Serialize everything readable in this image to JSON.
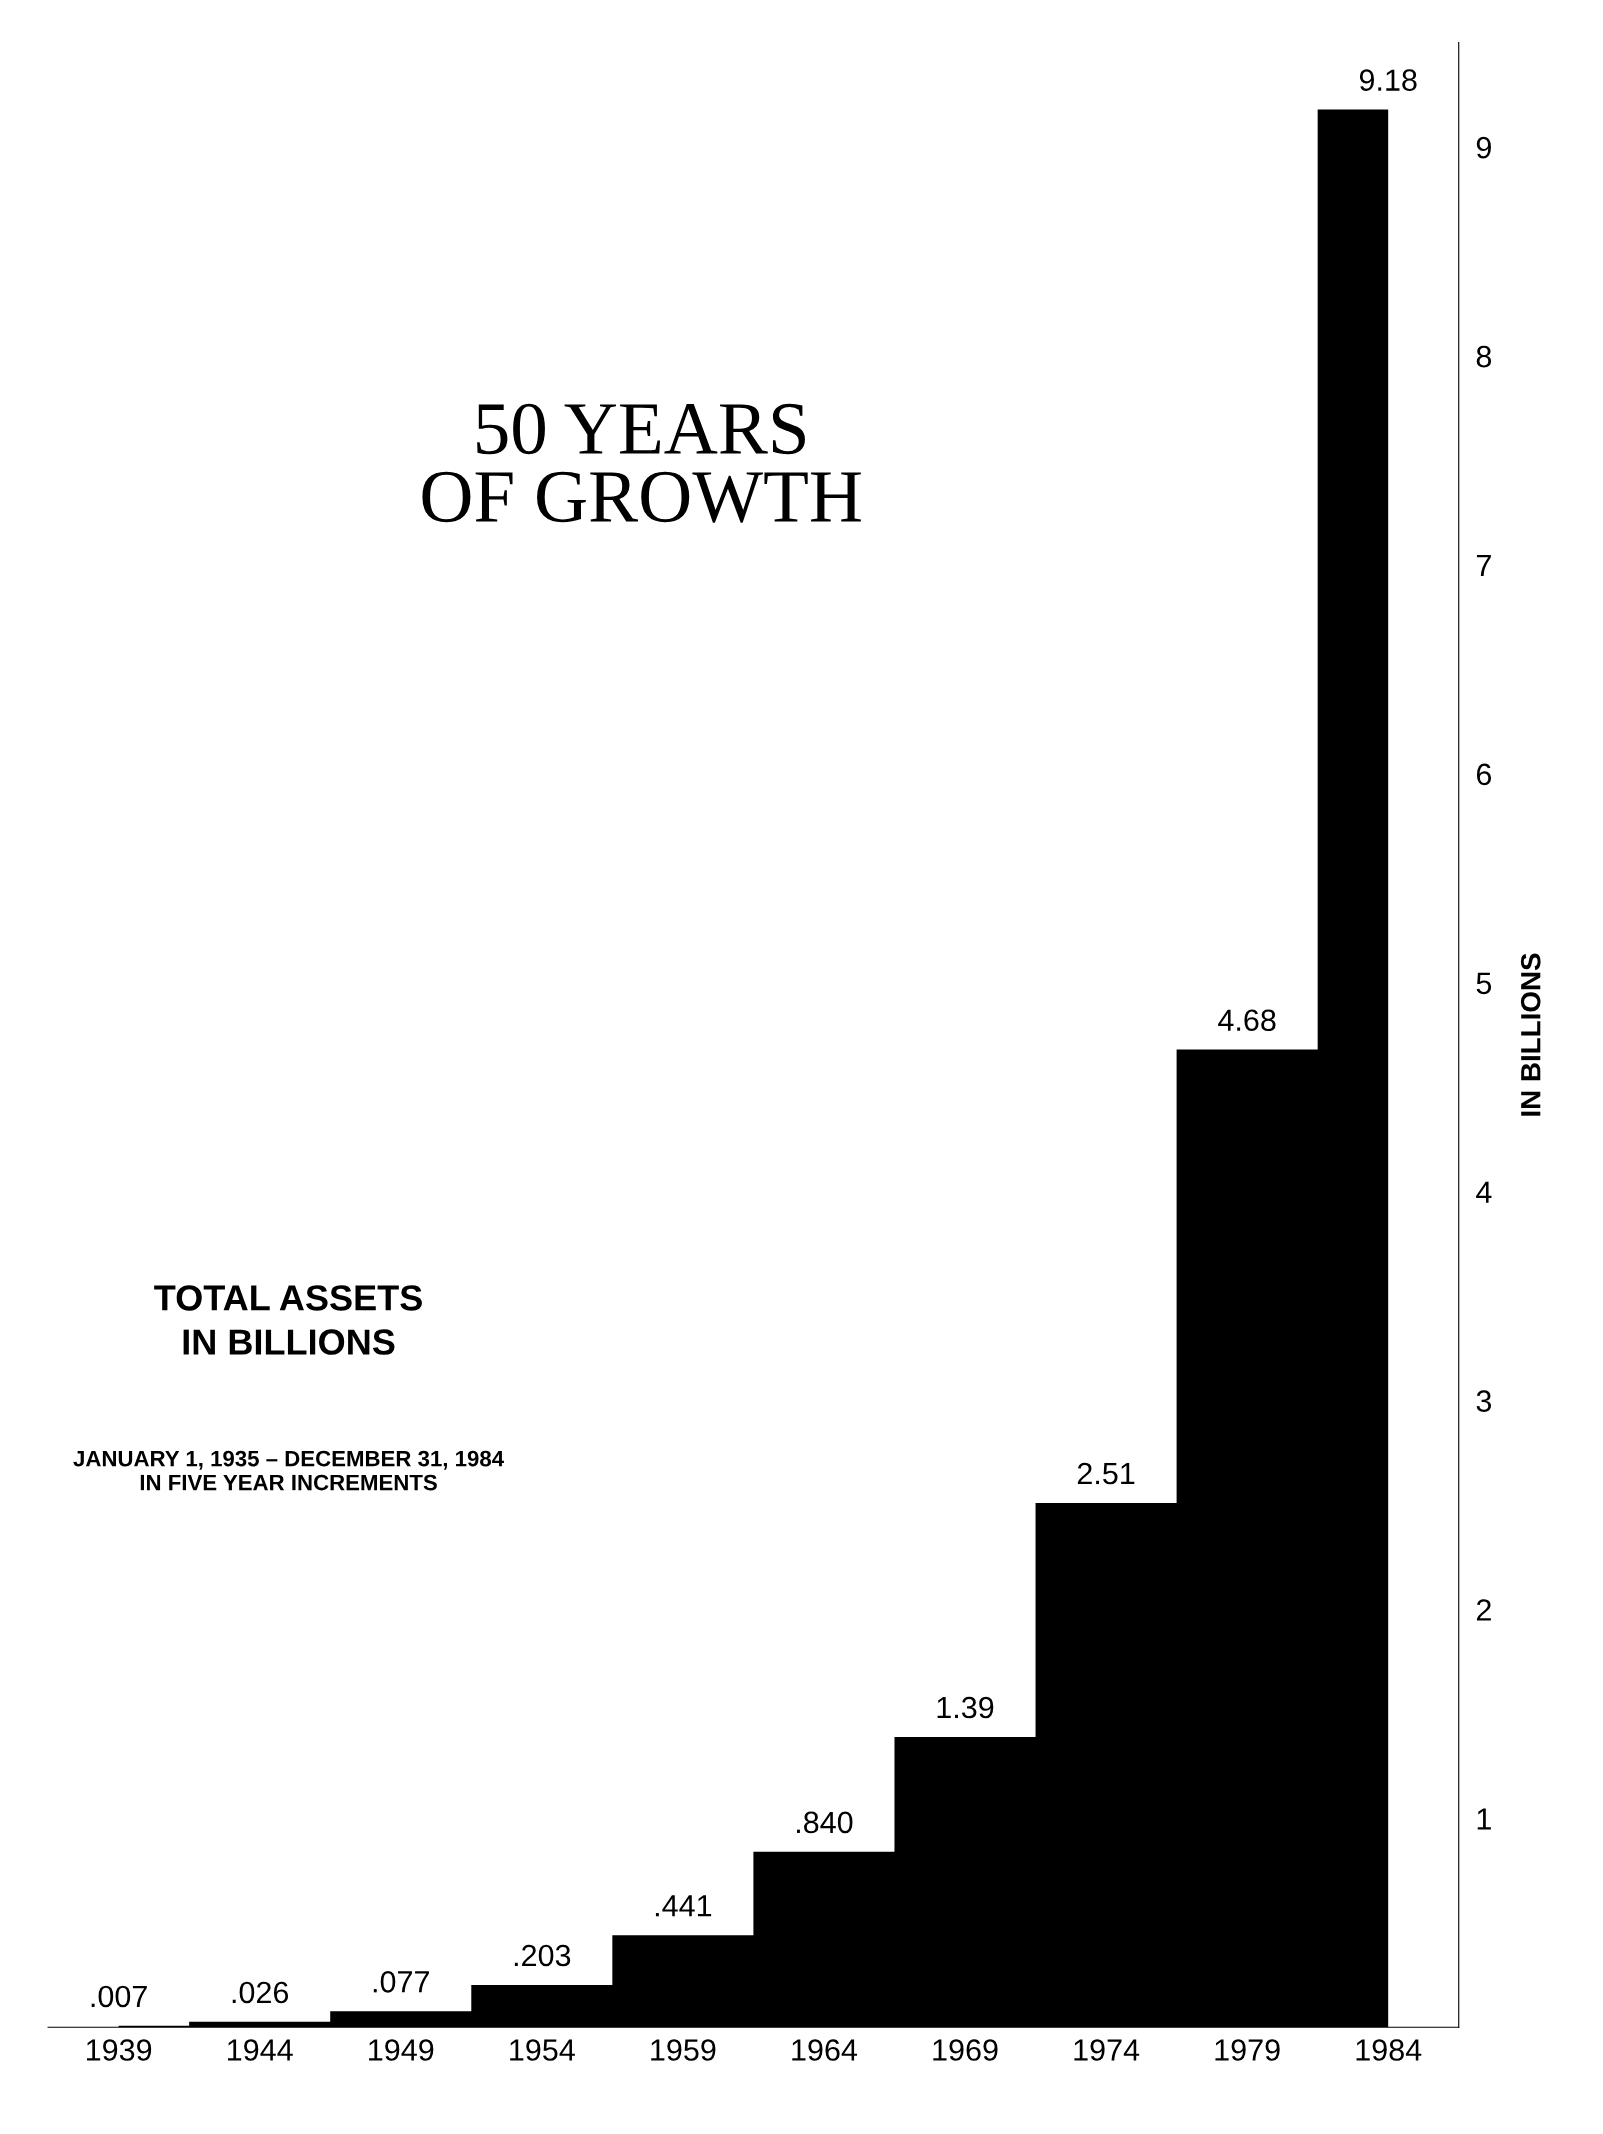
{
  "chart_data": {
    "type": "area",
    "title": "50 YEARS\nOF GROWTH",
    "subtitle": "TOTAL ASSETS\nIN BILLIONS",
    "ylabel": "IN BILLIONS",
    "annotations": [
      "JANUARY 1, 1935 – DECEMBER 31, 1984\nIN FIVE YEAR INCREMENTS"
    ],
    "categories": [
      "1939",
      "1944",
      "1949",
      "1954",
      "1959",
      "1964",
      "1969",
      "1974",
      "1979",
      "1984"
    ],
    "values": [
      0.007,
      0.026,
      0.077,
      0.203,
      0.441,
      0.84,
      1.39,
      2.51,
      4.68,
      9.18
    ],
    "value_labels": [
      ".007",
      ".026",
      ".077",
      ".203",
      ".441",
      ".840",
      "1.39",
      "2.51",
      "4.68",
      "9.18"
    ],
    "color": "#000000",
    "ylim": [
      0,
      9.5
    ],
    "yticks": [
      1,
      2,
      3,
      4,
      5,
      6,
      7,
      8,
      9
    ],
    "grid": false
  }
}
